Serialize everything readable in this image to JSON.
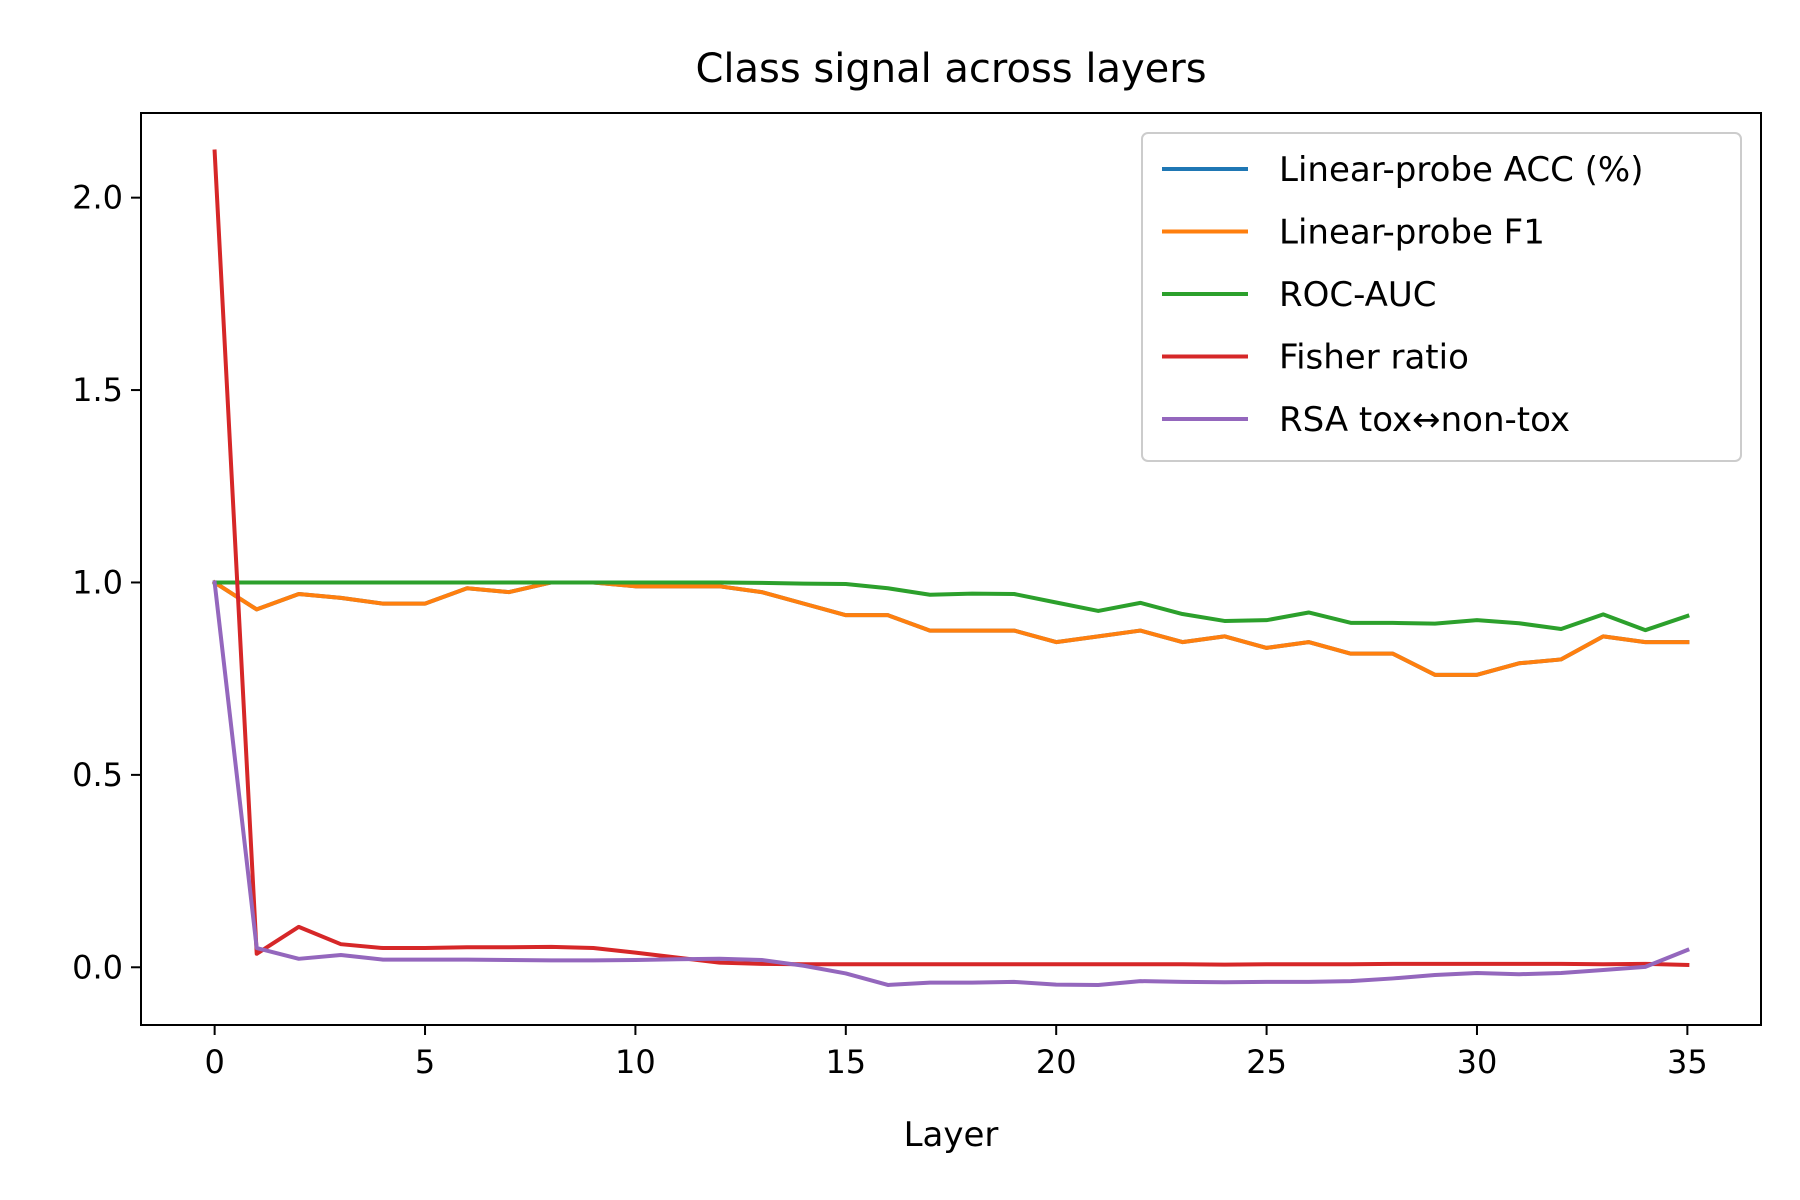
{
  "chart_data": {
    "type": "line",
    "title": "Class signal across layers",
    "xlabel": "Layer",
    "ylabel": "",
    "xlim": [
      -1.75,
      36.75
    ],
    "ylim": [
      -0.15,
      2.22
    ],
    "xticks": [
      0,
      5,
      10,
      15,
      20,
      25,
      30,
      35
    ],
    "xtick_labels": [
      "0",
      "5",
      "10",
      "15",
      "20",
      "25",
      "30",
      "35"
    ],
    "yticks": [
      0.0,
      0.5,
      1.0,
      1.5,
      2.0
    ],
    "ytick_labels": [
      "0.0",
      "0.5",
      "1.0",
      "1.5",
      "2.0"
    ],
    "grid": false,
    "legend_position": "top-right",
    "x": [
      0,
      1,
      2,
      3,
      4,
      5,
      6,
      7,
      8,
      9,
      10,
      11,
      12,
      13,
      14,
      15,
      16,
      17,
      18,
      19,
      20,
      21,
      22,
      23,
      24,
      25,
      26,
      27,
      28,
      29,
      30,
      31,
      32,
      33,
      34,
      35
    ],
    "series": [
      {
        "name": "Linear-probe ACC (%)",
        "color": "#1f77b4",
        "values": [
          1.0,
          0.93,
          0.97,
          0.96,
          0.945,
          0.945,
          0.985,
          0.975,
          1.0,
          1.0,
          0.99,
          0.99,
          0.99,
          0.975,
          0.945,
          0.915,
          0.915,
          0.875,
          0.875,
          0.875,
          0.845,
          0.86,
          0.875,
          0.845,
          0.86,
          0.83,
          0.845,
          0.815,
          0.815,
          0.76,
          0.76,
          0.79,
          0.8,
          0.86,
          0.845,
          0.845
        ]
      },
      {
        "name": "Linear-probe F1",
        "color": "#ff7f0e",
        "values": [
          1.0,
          0.93,
          0.97,
          0.96,
          0.945,
          0.945,
          0.985,
          0.975,
          1.0,
          1.0,
          0.99,
          0.99,
          0.99,
          0.975,
          0.945,
          0.915,
          0.915,
          0.875,
          0.875,
          0.875,
          0.845,
          0.86,
          0.875,
          0.845,
          0.86,
          0.83,
          0.845,
          0.815,
          0.815,
          0.76,
          0.76,
          0.79,
          0.8,
          0.86,
          0.845,
          0.845
        ]
      },
      {
        "name": "ROC-AUC",
        "color": "#2ca02c",
        "values": [
          1.0,
          1.0,
          1.0,
          1.0,
          1.0,
          1.0,
          1.0,
          1.0,
          1.0,
          1.0,
          1.0,
          1.0,
          1.0,
          0.999,
          0.997,
          0.996,
          0.985,
          0.968,
          0.971,
          0.97,
          0.948,
          0.926,
          0.947,
          0.918,
          0.9,
          0.902,
          0.922,
          0.895,
          0.895,
          0.893,
          0.902,
          0.894,
          0.879,
          0.917,
          0.876,
          0.913
        ]
      },
      {
        "name": "Fisher ratio",
        "color": "#d62728",
        "values": [
          2.12,
          0.035,
          0.105,
          0.06,
          0.05,
          0.05,
          0.052,
          0.052,
          0.053,
          0.05,
          0.038,
          0.025,
          0.012,
          0.009,
          0.008,
          0.008,
          0.008,
          0.008,
          0.008,
          0.008,
          0.008,
          0.008,
          0.008,
          0.008,
          0.007,
          0.008,
          0.008,
          0.008,
          0.009,
          0.009,
          0.009,
          0.009,
          0.009,
          0.008,
          0.009,
          0.006
        ]
      },
      {
        "name": "RSA tox↔non-tox",
        "color": "#9467bd",
        "values": [
          1.0,
          0.05,
          0.022,
          0.032,
          0.02,
          0.02,
          0.02,
          0.019,
          0.018,
          0.018,
          0.019,
          0.021,
          0.022,
          0.019,
          0.004,
          -0.016,
          -0.046,
          -0.04,
          -0.04,
          -0.038,
          -0.045,
          -0.046,
          -0.036,
          -0.038,
          -0.039,
          -0.038,
          -0.038,
          -0.036,
          -0.029,
          -0.02,
          -0.015,
          -0.018,
          -0.015,
          -0.007,
          0.001,
          0.045
        ]
      }
    ]
  }
}
